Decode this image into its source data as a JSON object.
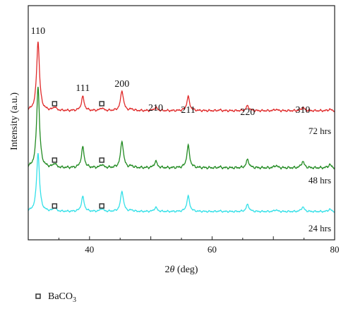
{
  "chart_data": {
    "type": "line",
    "xlabel_prefix": "2",
    "xlabel_theta": "θ",
    "xlabel_suffix": " (deg)",
    "ylabel": "Intensity (a.u.)",
    "xlim": [
      30,
      80
    ],
    "x_ticks": [
      40,
      60,
      80
    ],
    "x_tick_labels": [
      "40",
      "60",
      "80"
    ],
    "peaks": [
      {
        "label": "110",
        "x": 31.6
      },
      {
        "label": "111",
        "x": 38.9
      },
      {
        "label": "200",
        "x": 45.3
      },
      {
        "label": "210",
        "x": 50.8
      },
      {
        "label": "211",
        "x": 56.1
      },
      {
        "label": "220",
        "x": 65.8
      },
      {
        "label": "310",
        "x": 74.8
      }
    ],
    "impurity_peaks_x": [
      34.3,
      42.0
    ],
    "series": [
      {
        "name": "72 hrs",
        "color": "#e02a2a",
        "peak_heights": [
          {
            "x": 31.6,
            "h": 1.0
          },
          {
            "x": 34.3,
            "h": 0.05
          },
          {
            "x": 38.9,
            "h": 0.2
          },
          {
            "x": 42.0,
            "h": 0.04
          },
          {
            "x": 45.3,
            "h": 0.29
          },
          {
            "x": 46.9,
            "h": 0.02
          },
          {
            "x": 50.8,
            "h": 0.05
          },
          {
            "x": 56.1,
            "h": 0.2
          },
          {
            "x": 61.2,
            "h": 0.01
          },
          {
            "x": 65.8,
            "h": 0.07
          },
          {
            "x": 70.4,
            "h": 0.02
          },
          {
            "x": 74.8,
            "h": 0.05
          },
          {
            "x": 79.2,
            "h": 0.02
          }
        ]
      },
      {
        "name": "48 hrs",
        "color": "#228b22",
        "peak_heights": [
          {
            "x": 31.6,
            "h": 1.0
          },
          {
            "x": 34.3,
            "h": 0.05
          },
          {
            "x": 38.9,
            "h": 0.25
          },
          {
            "x": 42.0,
            "h": 0.04
          },
          {
            "x": 45.3,
            "h": 0.33
          },
          {
            "x": 46.9,
            "h": 0.02
          },
          {
            "x": 50.8,
            "h": 0.08
          },
          {
            "x": 56.1,
            "h": 0.27
          },
          {
            "x": 61.2,
            "h": 0.01
          },
          {
            "x": 65.8,
            "h": 0.1
          },
          {
            "x": 70.4,
            "h": 0.03
          },
          {
            "x": 74.8,
            "h": 0.08
          },
          {
            "x": 79.2,
            "h": 0.04
          }
        ]
      },
      {
        "name": "24 hrs",
        "color": "#33e0e8",
        "peak_heights": [
          {
            "x": 31.6,
            "h": 1.0
          },
          {
            "x": 34.3,
            "h": 0.06
          },
          {
            "x": 38.9,
            "h": 0.25
          },
          {
            "x": 42.0,
            "h": 0.05
          },
          {
            "x": 45.3,
            "h": 0.35
          },
          {
            "x": 46.9,
            "h": 0.02
          },
          {
            "x": 50.8,
            "h": 0.07
          },
          {
            "x": 56.1,
            "h": 0.26
          },
          {
            "x": 61.2,
            "h": 0.01
          },
          {
            "x": 65.8,
            "h": 0.12
          },
          {
            "x": 70.4,
            "h": 0.03
          },
          {
            "x": 74.8,
            "h": 0.08
          },
          {
            "x": 79.2,
            "h": 0.04
          }
        ]
      }
    ],
    "legend": {
      "symbol": "open-square",
      "label_main": "BaCO",
      "label_sub": "3"
    }
  }
}
